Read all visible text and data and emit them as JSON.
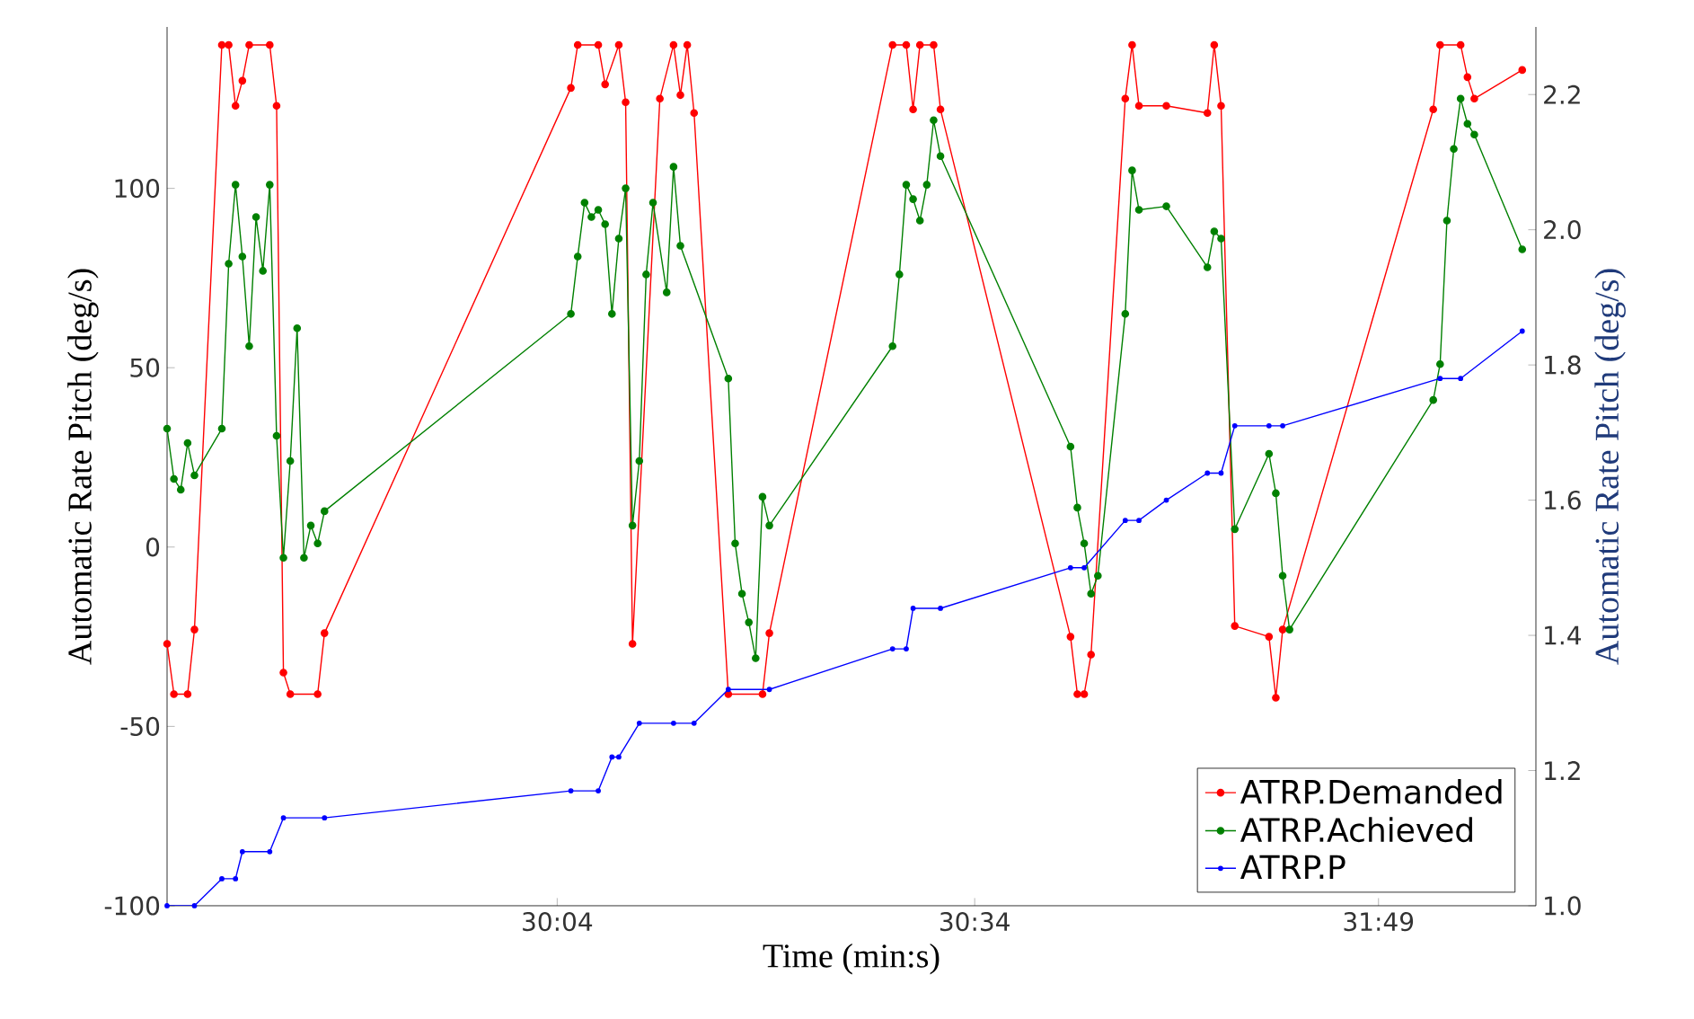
{
  "chart_data": {
    "type": "line",
    "xlabel": "Time (min:s)",
    "ylabel": "Automatic Rate Pitch (deg/s)",
    "y2label": "Automatic Rate Pitch (deg/s)",
    "categories": [
      null,
      null,
      null,
      null,
      null,
      null,
      null,
      null,
      null,
      null,
      null,
      null,
      null,
      null,
      null,
      null,
      null,
      null,
      null,
      null,
      null,
      null,
      null,
      null,
      null,
      null,
      null,
      null,
      null,
      null,
      null,
      null,
      null,
      null,
      null,
      null,
      null,
      null,
      null,
      null,
      null,
      null,
      null,
      null,
      null,
      null,
      null,
      null,
      null,
      null,
      null,
      null,
      null,
      null,
      null,
      null,
      null,
      "30:04",
      null,
      null,
      null,
      null,
      null,
      null,
      null,
      null,
      null,
      null,
      null,
      null,
      null,
      null,
      null,
      null,
      null,
      null,
      null,
      null,
      null,
      null,
      null,
      null,
      null,
      null,
      null,
      null,
      null,
      null,
      null,
      null,
      null,
      null,
      null,
      null,
      null,
      null,
      null,
      null,
      null,
      null,
      null,
      null,
      null,
      null,
      null,
      null,
      null,
      null,
      null,
      null,
      null,
      null,
      null,
      null,
      null,
      null,
      null,
      null,
      "30:34",
      null,
      null,
      null,
      null,
      null,
      null,
      null,
      null,
      null,
      null,
      null,
      null,
      null,
      null,
      null,
      null,
      null,
      null,
      null,
      null,
      null,
      null,
      null,
      null,
      null,
      null,
      null,
      null,
      null,
      null,
      null,
      null,
      null,
      null,
      null,
      null,
      null,
      null,
      null,
      null,
      null,
      null,
      null,
      null,
      null,
      null,
      null,
      null,
      null,
      null,
      null,
      null,
      null,
      null,
      null,
      null,
      null,
      null,
      "31:49",
      null,
      null,
      null,
      null,
      null,
      null,
      null,
      null,
      null,
      null,
      null,
      null,
      null,
      null,
      null,
      null,
      null,
      null,
      null,
      null,
      null,
      null,
      null
    ],
    "ylim": [
      -100,
      145
    ],
    "yticks": [
      -100,
      -50,
      0,
      50,
      100
    ],
    "y2lim": [
      1.0,
      2.3
    ],
    "y2ticks": [
      {
        "value": 1.0,
        "label": "1.0"
      },
      {
        "value": 1.2,
        "label": "1.2"
      },
      {
        "value": 1.4,
        "label": "1.4"
      },
      {
        "value": 1.6,
        "label": "1.6"
      },
      {
        "value": 1.8,
        "label": "1.8"
      },
      {
        "value": 2.0,
        "label": "2.0"
      },
      {
        "value": 2.2,
        "label": "2.2"
      }
    ],
    "marker": "circle",
    "line_style": "solid",
    "legend": "bottom right",
    "series": [
      {
        "name": "ATRP.Demanded",
        "color": "#ff0000",
        "values": [
          -27,
          -41,
          null,
          -41,
          -23,
          null,
          null,
          null,
          140,
          140,
          123,
          130,
          140,
          null,
          null,
          140,
          123,
          -35,
          -41,
          null,
          null,
          null,
          -41,
          -24,
          null,
          null,
          null,
          null,
          null,
          null,
          null,
          null,
          null,
          null,
          null,
          null,
          null,
          null,
          null,
          null,
          null,
          null,
          null,
          null,
          null,
          null,
          null,
          null,
          null,
          null,
          null,
          null,
          null,
          null,
          null,
          null,
          null,
          null,
          null,
          128,
          140,
          null,
          null,
          140,
          129,
          null,
          140,
          124,
          -27,
          null,
          null,
          null,
          125,
          null,
          140,
          126,
          140,
          121,
          null,
          null,
          null,
          null,
          -41,
          null,
          null,
          null,
          null,
          -41,
          -24,
          null,
          null,
          null,
          null,
          null,
          null,
          null,
          null,
          null,
          null,
          null,
          null,
          null,
          null,
          null,
          null,
          null,
          140,
          null,
          140,
          122,
          140,
          null,
          140,
          122,
          null,
          null,
          null,
          null,
          null,
          null,
          null,
          null,
          null,
          null,
          null,
          null,
          null,
          null,
          null,
          null,
          null,
          null,
          -25,
          -41,
          -41,
          -30,
          null,
          null,
          null,
          null,
          125,
          140,
          123,
          null,
          null,
          null,
          123,
          null,
          null,
          null,
          null,
          null,
          121,
          140,
          123,
          null,
          -22,
          null,
          null,
          null,
          null,
          -25,
          -42,
          -23,
          null,
          null,
          null,
          null,
          null,
          null,
          null,
          null,
          null,
          null,
          null,
          null,
          null,
          null,
          null,
          null,
          null,
          null,
          null,
          null,
          null,
          122,
          140,
          null,
          null,
          140,
          131,
          125,
          null,
          null,
          null,
          null,
          null,
          null,
          133,
          null,
          null
        ]
      },
      {
        "name": "ATRP.Achieved",
        "color": "#008000",
        "values": [
          33,
          19,
          16,
          29,
          20,
          null,
          null,
          null,
          33,
          79,
          101,
          81,
          56,
          92,
          77,
          101,
          31,
          -3,
          24,
          61,
          -3,
          6,
          1,
          10,
          null,
          null,
          null,
          null,
          null,
          null,
          null,
          null,
          null,
          null,
          null,
          null,
          null,
          null,
          null,
          null,
          null,
          null,
          null,
          null,
          null,
          null,
          null,
          null,
          null,
          null,
          null,
          null,
          null,
          null,
          null,
          null,
          null,
          null,
          null,
          65,
          81,
          96,
          92,
          94,
          90,
          65,
          86,
          100,
          6,
          24,
          76,
          96,
          null,
          71,
          106,
          84,
          null,
          null,
          null,
          null,
          null,
          null,
          47,
          1,
          -13,
          -21,
          -31,
          14,
          6,
          null,
          null,
          null,
          null,
          null,
          null,
          null,
          null,
          null,
          null,
          null,
          null,
          null,
          null,
          null,
          null,
          null,
          56,
          76,
          101,
          97,
          91,
          101,
          119,
          109,
          null,
          null,
          null,
          null,
          null,
          null,
          null,
          null,
          null,
          null,
          null,
          null,
          null,
          null,
          null,
          null,
          null,
          null,
          28,
          11,
          1,
          -13,
          -8,
          null,
          null,
          null,
          65,
          105,
          94,
          null,
          null,
          null,
          95,
          null,
          null,
          null,
          null,
          null,
          78,
          88,
          86,
          null,
          5,
          null,
          null,
          null,
          null,
          26,
          15,
          -8,
          -23,
          null,
          null,
          null,
          null,
          null,
          null,
          null,
          null,
          null,
          null,
          null,
          null,
          null,
          null,
          null,
          null,
          null,
          null,
          null,
          null,
          41,
          51,
          91,
          111,
          125,
          118,
          115,
          null,
          null,
          null,
          null,
          null,
          null,
          83,
          null,
          null
        ]
      },
      {
        "name": "ATRP.P",
        "color": "#0000ff",
        "axis": "y2",
        "values": [
          1.0,
          null,
          null,
          null,
          1.0,
          null,
          null,
          null,
          1.04,
          null,
          1.04,
          1.08,
          null,
          null,
          null,
          1.08,
          null,
          1.13,
          null,
          null,
          null,
          null,
          null,
          1.13,
          null,
          null,
          null,
          null,
          null,
          null,
          null,
          null,
          null,
          null,
          null,
          null,
          null,
          null,
          null,
          null,
          null,
          null,
          null,
          null,
          null,
          null,
          null,
          null,
          null,
          null,
          null,
          null,
          null,
          null,
          null,
          null,
          null,
          null,
          null,
          1.17,
          null,
          null,
          null,
          1.17,
          null,
          1.22,
          1.22,
          null,
          null,
          1.27,
          null,
          null,
          null,
          null,
          1.27,
          null,
          null,
          1.27,
          null,
          null,
          null,
          null,
          1.32,
          null,
          null,
          null,
          null,
          null,
          1.32,
          null,
          null,
          null,
          null,
          null,
          null,
          null,
          null,
          null,
          null,
          null,
          null,
          null,
          null,
          null,
          null,
          null,
          1.38,
          null,
          1.38,
          1.44,
          null,
          null,
          null,
          1.44,
          null,
          null,
          null,
          null,
          null,
          null,
          null,
          null,
          null,
          null,
          null,
          null,
          null,
          null,
          null,
          null,
          null,
          null,
          1.5,
          null,
          1.5,
          null,
          null,
          null,
          null,
          null,
          1.57,
          null,
          1.57,
          null,
          null,
          null,
          1.6,
          null,
          null,
          null,
          null,
          null,
          1.64,
          null,
          1.64,
          null,
          1.71,
          null,
          null,
          null,
          null,
          1.71,
          null,
          1.71,
          null,
          null,
          null,
          null,
          null,
          null,
          null,
          null,
          null,
          null,
          null,
          null,
          null,
          null,
          null,
          null,
          null,
          null,
          null,
          null,
          null,
          null,
          1.78,
          null,
          null,
          1.78,
          null,
          null,
          null,
          null,
          null,
          null,
          null,
          null,
          1.85,
          null,
          null
        ]
      }
    ]
  }
}
